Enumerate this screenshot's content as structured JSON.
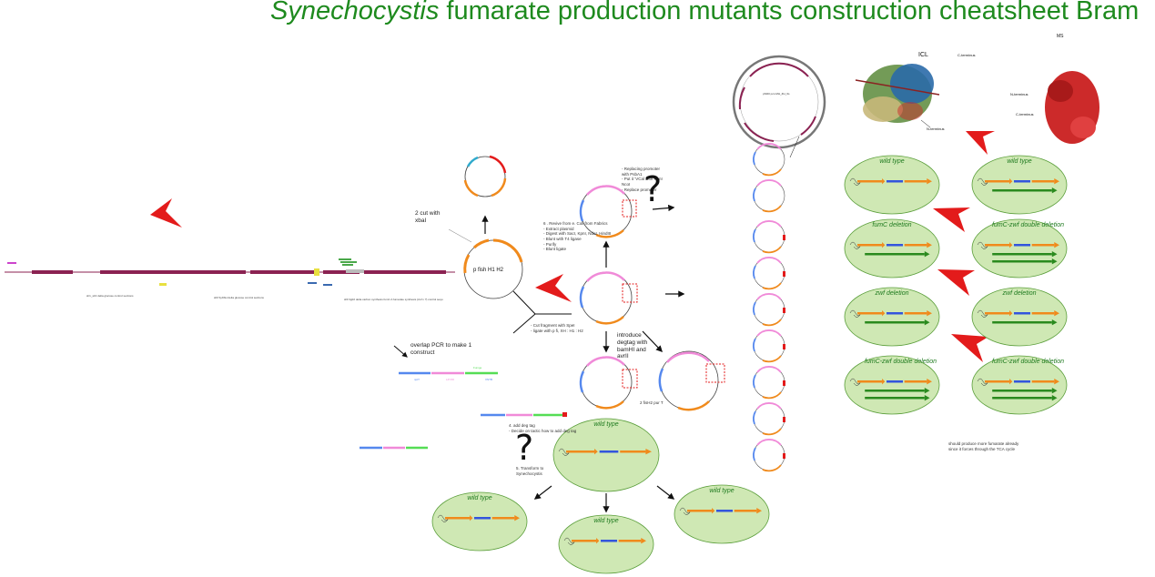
{
  "title_italic": "Synechocystis",
  "title_rest": " fumarate production mutants construction cheatsheet Bram",
  "plasmid_main_label": "p fish H1 H2",
  "cut_label": "2 cut with\nxbaI",
  "step6_text": "6 . Revive from e. Coli from Fabrics\n- Extract plasmid\n- Digest with SacI, KpnI, NdeI, HindIII\n- Blunt with T4 ligase\n- Purify\n- Blunt ligate",
  "replace_promoter_text": "- Replacing promoter\nwith PsbA1\n- Put it ‘VCal with KpnI\nNcoI\n- Replace promoter",
  "cut_fragment_text": "- Cut fragment with SpeI\n- ligate with p fi, XH : H1 : H2",
  "introduce_degtag": "introduce\ndegtag with\nbamHI and\navrII",
  "two_fisH2": "2 fisH2 pur T",
  "overlap_pcr": "overlap PCR to make 1\nconstruct",
  "add_deg_tag": "4. add deg tag\n- Decide on tactic how to add deg tag",
  "transform_text": "5. Transform to\nSynechocystis",
  "small_plasmid_label": "pSI00 pcc-MH_ZH_6s",
  "ms_label": "MS",
  "icl_label": "ICL",
  "c_terminus": "C-terminus",
  "n_terminus": "N-terminus",
  "n_terminus2": "N-terminus",
  "c_terminus2": "C-terminus",
  "note_text": "should produce more fumarate already\nsince it forces through the TCA cycle",
  "cells_right": [
    {
      "title": "wild type"
    },
    {
      "title": "wild type"
    },
    {
      "title": "fumC deletion"
    },
    {
      "title": "fumC-zwf double deletion"
    },
    {
      "title": "zwf deletion"
    },
    {
      "title": "zwf deletion"
    },
    {
      "title": "fumC-zwf double deletion"
    },
    {
      "title": "fumC-zwf double deletion"
    }
  ],
  "cells_bottom": [
    {
      "title": "wild type"
    },
    {
      "title": "wild type"
    },
    {
      "title": "wild type"
    },
    {
      "title": "wild type"
    }
  ],
  "question_mark": "?",
  "linear_map_caption1": "slr1_slr2 delta glucose control sections",
  "linear_map_caption2": "sll0 SybSH delta glucose control sections",
  "linear_map_caption3": "sll0 3g02 delta carbon synthesis fumC A fumarate synthesis (zwf x ?) control sequ",
  "pcr_labels": [
    "nptT",
    "LZYZ0",
    "Fumge",
    "XNTB"
  ],
  "colors": {
    "green_title": "#1e8a1e",
    "cell_fill": "#cfe8b4",
    "cell_stroke": "#5a9e3a",
    "orange": "#f08a1c",
    "blue": "#3355dd",
    "green_arrow": "#2a8a1e",
    "pink": "#f08ad8",
    "red_arrow": "#e31b1b",
    "magenta_map": "#8b2252",
    "protein_red": "#cc2a2a"
  }
}
